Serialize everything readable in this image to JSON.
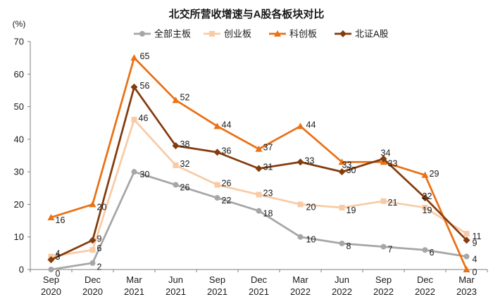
{
  "chart_data": {
    "type": "line",
    "title": "北交所营收增速与A股各板块对比",
    "unit_label": "(%)",
    "categories": [
      [
        "Sep",
        "2020"
      ],
      [
        "Dec",
        "2020"
      ],
      [
        "Mar",
        "2021"
      ],
      [
        "Jun",
        "2021"
      ],
      [
        "Sep",
        "2021"
      ],
      [
        "Dec",
        "2021"
      ],
      [
        "Mar",
        "2022"
      ],
      [
        "Jun",
        "2022"
      ],
      [
        "Sep",
        "2022"
      ],
      [
        "Dec",
        "2022"
      ],
      [
        "Mar",
        "2023"
      ]
    ],
    "ylim": [
      0,
      70
    ],
    "yticks": [
      0,
      10,
      20,
      30,
      40,
      50,
      60,
      70
    ],
    "grid": false,
    "legend_position": "top",
    "series": [
      {
        "name": "全部主板",
        "color": "#a6a6a6",
        "marker": "circle",
        "values": [
          0,
          2,
          30,
          26,
          22,
          18,
          10,
          8,
          7,
          6,
          4
        ]
      },
      {
        "name": "创业板",
        "color": "#f8cba6",
        "marker": "square",
        "values": [
          4,
          6,
          46,
          32,
          26,
          23,
          20,
          19,
          21,
          19,
          11
        ]
      },
      {
        "name": "科创板",
        "color": "#ea7115",
        "marker": "triangle",
        "values": [
          16,
          20,
          65,
          52,
          44,
          37,
          44,
          33,
          33,
          29,
          0
        ]
      },
      {
        "name": "北证A股",
        "color": "#843c0c",
        "marker": "diamond",
        "values": [
          3,
          9,
          56,
          38,
          36,
          31,
          33,
          30,
          34,
          22,
          9
        ]
      }
    ]
  }
}
